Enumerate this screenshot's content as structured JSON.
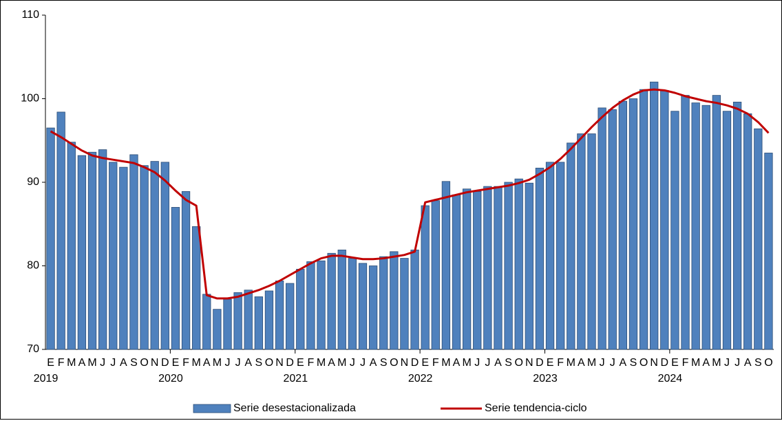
{
  "chart_data": {
    "type": "bar",
    "categories": [
      "E",
      "F",
      "M",
      "A",
      "M",
      "J",
      "J",
      "A",
      "S",
      "O",
      "N",
      "D",
      "E",
      "F",
      "M",
      "A",
      "M",
      "J",
      "J",
      "A",
      "S",
      "O",
      "N",
      "D",
      "E",
      "F",
      "M",
      "A",
      "M",
      "J",
      "J",
      "A",
      "S",
      "O",
      "N",
      "D",
      "E",
      "F",
      "M",
      "A",
      "M",
      "J",
      "J",
      "A",
      "S",
      "O",
      "N",
      "D",
      "E",
      "F",
      "M",
      "A",
      "M",
      "J",
      "J",
      "A",
      "S",
      "O",
      "N",
      "D",
      "E",
      "F",
      "M",
      "A",
      "M",
      "J",
      "J",
      "A",
      "S",
      "O"
    ],
    "years": [
      "2019",
      null,
      null,
      null,
      null,
      null,
      null,
      null,
      null,
      null,
      null,
      null,
      "2020",
      null,
      null,
      null,
      null,
      null,
      null,
      null,
      null,
      null,
      null,
      null,
      "2021",
      null,
      null,
      null,
      null,
      null,
      null,
      null,
      null,
      null,
      null,
      null,
      "2022",
      null,
      null,
      null,
      null,
      null,
      null,
      null,
      null,
      null,
      null,
      null,
      "2023",
      null,
      null,
      null,
      null,
      null,
      null,
      null,
      null,
      null,
      null,
      null,
      "2024",
      null,
      null,
      null,
      null,
      null,
      null,
      null,
      null,
      null
    ],
    "series": [
      {
        "name": "Serie desestacionalizada",
        "kind": "bar",
        "color": "#4f81bd",
        "values": [
          96.5,
          98.4,
          94.8,
          93.2,
          93.6,
          93.9,
          92.4,
          91.8,
          93.3,
          92.0,
          92.5,
          92.4,
          87.0,
          88.9,
          84.7,
          76.6,
          74.8,
          76.0,
          76.8,
          77.1,
          76.3,
          77.0,
          78.2,
          77.9,
          79.6,
          80.5,
          80.6,
          81.5,
          81.9,
          80.9,
          80.3,
          80.0,
          81.1,
          81.7,
          80.9,
          81.9,
          87.2,
          87.8,
          90.1,
          88.5,
          89.2,
          88.9,
          89.5,
          89.5,
          90.0,
          90.4,
          89.9,
          91.7,
          92.4,
          92.4,
          94.7,
          95.8,
          95.8,
          98.9,
          98.7,
          99.7,
          100.0,
          101.1,
          102.0,
          101.0,
          98.5,
          100.4,
          99.5,
          99.2,
          100.4,
          98.5,
          99.6,
          98.2,
          96.4,
          93.5
        ]
      },
      {
        "name": "Serie tendencia-ciclo",
        "kind": "line",
        "color": "#c00000",
        "values": [
          96.1,
          95.4,
          94.6,
          93.8,
          93.2,
          92.9,
          92.7,
          92.5,
          92.3,
          91.8,
          91.2,
          90.2,
          89.0,
          87.9,
          87.2,
          76.5,
          76.1,
          76.1,
          76.3,
          76.7,
          77.1,
          77.6,
          78.2,
          78.9,
          79.6,
          80.3,
          80.9,
          81.2,
          81.2,
          81.0,
          80.8,
          80.8,
          80.9,
          81.1,
          81.3,
          81.7,
          87.6,
          87.9,
          88.2,
          88.5,
          88.8,
          89.0,
          89.2,
          89.4,
          89.6,
          89.9,
          90.3,
          91.0,
          91.8,
          92.8,
          94.0,
          95.3,
          96.6,
          97.8,
          98.9,
          99.8,
          100.5,
          101.0,
          101.1,
          101.0,
          100.7,
          100.3,
          100.0,
          99.7,
          99.5,
          99.2,
          98.8,
          98.2,
          97.2,
          95.9
        ]
      }
    ],
    "ylim": [
      70,
      110
    ],
    "yticks": [
      70,
      80,
      90,
      100,
      110
    ],
    "grid": false
  }
}
